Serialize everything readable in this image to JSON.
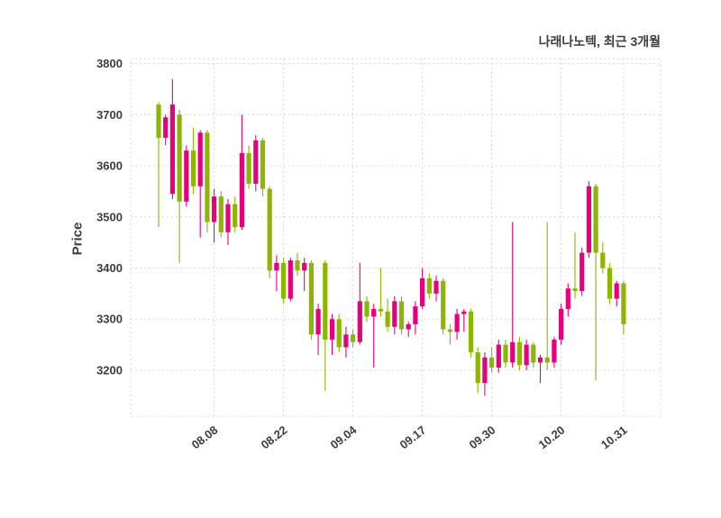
{
  "header": {
    "title": "나래나노텍, 최근 3개월"
  },
  "axes": {
    "y_label": "Price"
  },
  "colors": {
    "up_candle": "#e6007e",
    "down_candle": "#8db600",
    "grid": "#d8d8d8",
    "text": "#3d3d3d",
    "background": "#ffffff"
  },
  "chart_data": {
    "type": "candlestick",
    "title": "나래나노텍, 최근 3개월",
    "ylabel": "Price",
    "ylim": [
      3110,
      3810
    ],
    "y_ticks": [
      3200,
      3300,
      3400,
      3500,
      3600,
      3700,
      3800
    ],
    "x_tick_labels": [
      "08.08",
      "08.22",
      "09.04",
      "09.17",
      "09.30",
      "10.20",
      "10.31"
    ],
    "x_tick_indices": [
      8,
      18,
      28,
      38,
      48,
      58,
      67
    ],
    "grid": "dashed",
    "legend": "none",
    "candles_format": [
      "open",
      "high",
      "low",
      "close"
    ],
    "candles": [
      [
        3720,
        3725,
        3480,
        3655
      ],
      [
        3655,
        3700,
        3640,
        3695
      ],
      [
        3545,
        3770,
        3535,
        3720
      ],
      [
        3700,
        3710,
        3410,
        3530
      ],
      [
        3530,
        3640,
        3520,
        3630
      ],
      [
        3630,
        3675,
        3545,
        3560
      ],
      [
        3560,
        3670,
        3460,
        3665
      ],
      [
        3665,
        3670,
        3470,
        3490
      ],
      [
        3490,
        3555,
        3450,
        3540
      ],
      [
        3540,
        3550,
        3460,
        3470
      ],
      [
        3470,
        3535,
        3445,
        3525
      ],
      [
        3525,
        3540,
        3470,
        3480
      ],
      [
        3480,
        3700,
        3475,
        3625
      ],
      [
        3625,
        3640,
        3555,
        3565
      ],
      [
        3565,
        3660,
        3550,
        3650
      ],
      [
        3650,
        3655,
        3540,
        3555
      ],
      [
        3555,
        3560,
        3380,
        3395
      ],
      [
        3395,
        3425,
        3355,
        3410
      ],
      [
        3410,
        3420,
        3330,
        3340
      ],
      [
        3340,
        3420,
        3335,
        3415
      ],
      [
        3415,
        3430,
        3385,
        3395
      ],
      [
        3395,
        3420,
        3355,
        3410
      ],
      [
        3410,
        3415,
        3260,
        3270
      ],
      [
        3270,
        3330,
        3230,
        3320
      ],
      [
        3410,
        3415,
        3160,
        3260
      ],
      [
        3260,
        3310,
        3230,
        3300
      ],
      [
        3300,
        3310,
        3235,
        3245
      ],
      [
        3245,
        3285,
        3225,
        3270
      ],
      [
        3270,
        3280,
        3245,
        3255
      ],
      [
        3255,
        3410,
        3250,
        3335
      ],
      [
        3335,
        3345,
        3295,
        3305
      ],
      [
        3305,
        3330,
        3205,
        3320
      ],
      [
        3320,
        3400,
        3305,
        3315
      ],
      [
        3315,
        3340,
        3275,
        3285
      ],
      [
        3285,
        3345,
        3270,
        3335
      ],
      [
        3335,
        3345,
        3270,
        3280
      ],
      [
        3280,
        3295,
        3265,
        3290
      ],
      [
        3290,
        3335,
        3270,
        3325
      ],
      [
        3325,
        3400,
        3320,
        3380
      ],
      [
        3380,
        3390,
        3340,
        3350
      ],
      [
        3350,
        3385,
        3335,
        3375
      ],
      [
        3375,
        3380,
        3270,
        3280
      ],
      [
        3280,
        3290,
        3250,
        3275
      ],
      [
        3275,
        3320,
        3260,
        3310
      ],
      [
        3310,
        3320,
        3275,
        3315
      ],
      [
        3315,
        3320,
        3225,
        3235
      ],
      [
        3235,
        3245,
        3155,
        3175
      ],
      [
        3175,
        3235,
        3150,
        3225
      ],
      [
        3225,
        3245,
        3195,
        3205
      ],
      [
        3205,
        3260,
        3195,
        3250
      ],
      [
        3250,
        3260,
        3205,
        3215
      ],
      [
        3215,
        3490,
        3205,
        3255
      ],
      [
        3255,
        3265,
        3200,
        3210
      ],
      [
        3210,
        3260,
        3200,
        3250
      ],
      [
        3250,
        3255,
        3205,
        3215
      ],
      [
        3215,
        3230,
        3175,
        3225
      ],
      [
        3225,
        3490,
        3200,
        3215
      ],
      [
        3215,
        3265,
        3205,
        3260
      ],
      [
        3260,
        3330,
        3250,
        3320
      ],
      [
        3320,
        3370,
        3305,
        3360
      ],
      [
        3360,
        3470,
        3340,
        3355
      ],
      [
        3355,
        3440,
        3345,
        3430
      ],
      [
        3430,
        3570,
        3420,
        3560
      ],
      [
        3560,
        3565,
        3180,
        3430
      ],
      [
        3430,
        3450,
        3390,
        3400
      ],
      [
        3400,
        3410,
        3330,
        3340
      ],
      [
        3340,
        3375,
        3325,
        3370
      ],
      [
        3370,
        3375,
        3270,
        3290
      ]
    ]
  }
}
